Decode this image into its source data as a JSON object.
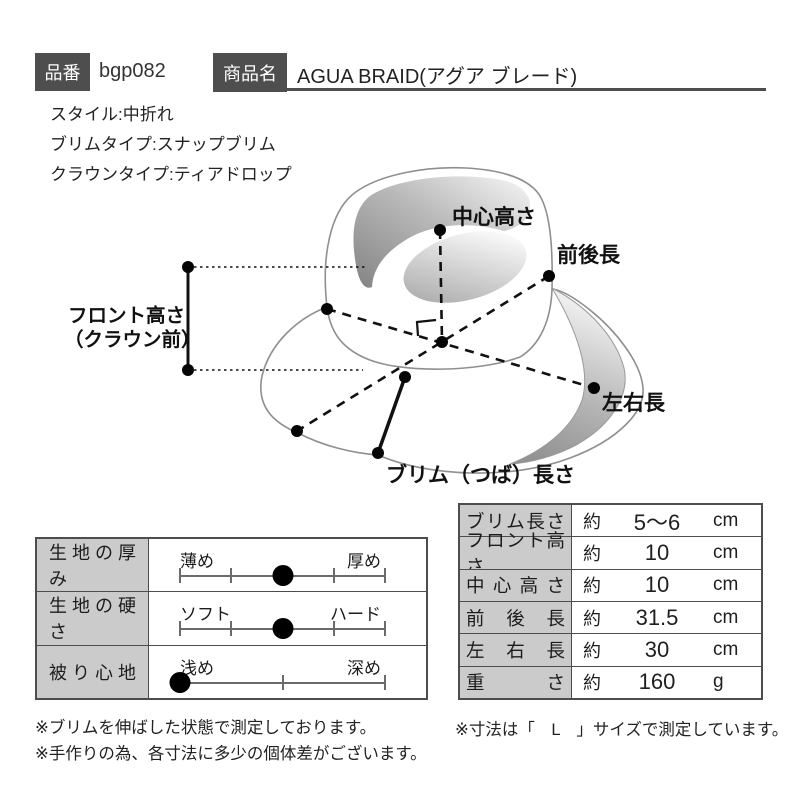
{
  "header": {
    "item_no_label": "品番",
    "item_no_value": "bgp082",
    "product_label": "商品名",
    "product_value": "AGUA BRAID(アグア ブレード)"
  },
  "specs": [
    "スタイル:中折れ",
    "ブリムタイプ:スナップブリム",
    "クラウンタイプ:ティアドロップ"
  ],
  "diagram": {
    "center_height": "中心高さ",
    "front_back_length": "前後長",
    "left_right_length": "左右長",
    "brim_length": "ブリム（つば）長さ",
    "front_height_line1": "フロント高さ",
    "front_height_line2": "（クラウン前）"
  },
  "left_table": {
    "rows": [
      {
        "label": "生地の厚み",
        "min": "薄め",
        "max": "厚め",
        "position": 50,
        "ticks": [
          0,
          25,
          75,
          100
        ]
      },
      {
        "label": "生地の硬さ",
        "min": "ソフト",
        "max": "ハード",
        "position": 50,
        "ticks": [
          0,
          25,
          75,
          100
        ]
      },
      {
        "label": "被り心地",
        "min": "浅め",
        "max": "深め",
        "position": 0,
        "ticks": [
          50,
          100
        ]
      }
    ]
  },
  "right_table": {
    "rows": [
      {
        "label": "ブリム長さ",
        "approx": "約",
        "value": "5～6",
        "unit": "cm"
      },
      {
        "label": "フロント高さ",
        "approx": "約",
        "value": "10",
        "unit": "cm"
      },
      {
        "label": "中心高さ",
        "approx": "約",
        "value": "10",
        "unit": "cm"
      },
      {
        "label": "前後長",
        "approx": "約",
        "value": "31.5",
        "unit": "cm"
      },
      {
        "label": "左右長",
        "approx": "約",
        "value": "30",
        "unit": "cm"
      },
      {
        "label": "重さ",
        "approx": "約",
        "value": "160",
        "unit": "g"
      }
    ]
  },
  "notes": {
    "left": [
      "※ブリムを伸ばした状態で測定しております。",
      "※手作りの為、各寸法に多少の個体差がございます。"
    ],
    "right": "※寸法は「　L　」サイズで測定しています。"
  },
  "colors": {
    "accent_dark": "#4e4e4e",
    "table_border": "#4d4d4d",
    "label_cell_bg": "#cbcbcb",
    "measure_line": "#111111",
    "hat_outline": "#8f8f8f"
  }
}
